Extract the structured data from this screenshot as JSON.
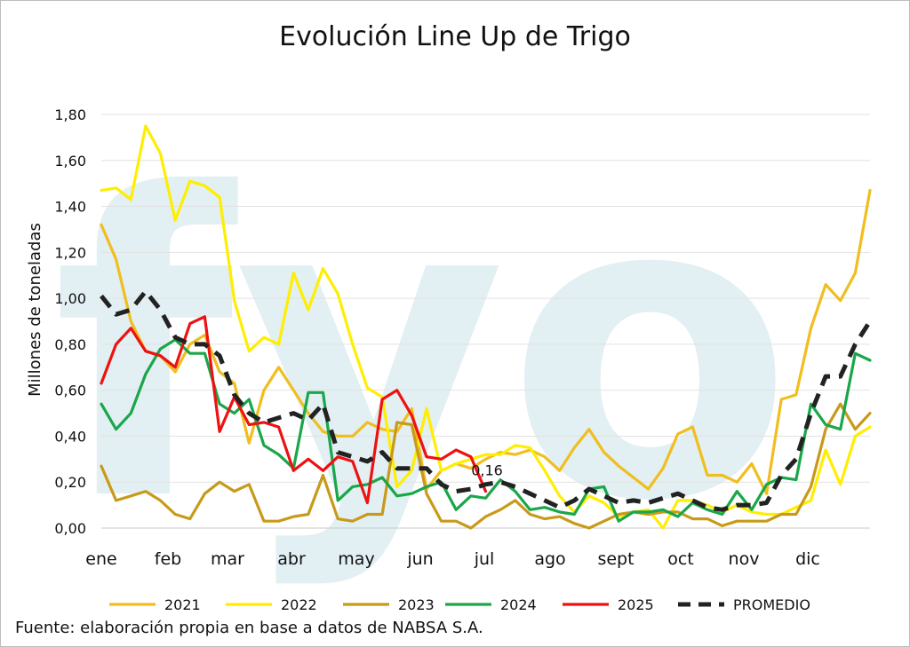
{
  "chart_data": {
    "type": "line",
    "title": "Evolución Line Up de Trigo",
    "xlabel": "",
    "ylabel": "Millones de toneladas",
    "ylim": [
      0,
      1.8
    ],
    "yticks": [
      "0,00",
      "0,20",
      "0,40",
      "0,60",
      "0,80",
      "1,00",
      "1,20",
      "1,40",
      "1,60",
      "1,80"
    ],
    "x_tick_labels": [
      "ene",
      "feb",
      "mar",
      "abr",
      "may",
      "jun",
      "jul",
      "ago",
      "sept",
      "oct",
      "nov",
      "dic"
    ],
    "x_range": [
      1,
      52
    ],
    "grid": "horizontal",
    "legend_position": "bottom",
    "annotation": {
      "text": "0,16",
      "series": "2025",
      "week": 25
    },
    "source": "Fuente: elaboración propia en base a datos de NABSA S.A.",
    "watermark": "fyo",
    "series": [
      {
        "name": "2021",
        "color": "#f0be1e",
        "dash": false,
        "values": [
          1.32,
          1.17,
          0.9,
          0.77,
          0.75,
          0.68,
          0.8,
          0.84,
          0.68,
          0.63,
          0.37,
          0.6,
          0.7,
          0.6,
          0.5,
          0.42,
          0.4,
          0.4,
          0.46,
          0.43,
          0.42,
          0.52,
          0.17,
          0.25,
          0.28,
          0.26,
          0.3,
          0.33,
          0.32,
          0.34,
          0.31,
          0.25,
          0.35,
          0.43,
          0.33,
          0.27,
          0.22,
          0.17,
          0.26,
          0.41,
          0.44,
          0.23,
          0.23,
          0.2,
          0.28,
          0.15,
          0.56,
          0.58,
          0.87,
          1.06,
          0.99,
          1.11,
          1.47
        ]
      },
      {
        "name": "2022",
        "color": "#ffee00",
        "dash": false,
        "values": [
          1.47,
          1.48,
          1.43,
          1.75,
          1.63,
          1.34,
          1.51,
          1.49,
          1.44,
          0.99,
          0.77,
          0.83,
          0.8,
          1.11,
          0.95,
          1.13,
          1.02,
          0.8,
          0.61,
          0.57,
          0.18,
          0.25,
          0.52,
          0.25,
          0.28,
          0.3,
          0.32,
          0.32,
          0.36,
          0.35,
          0.25,
          0.14,
          0.07,
          0.14,
          0.11,
          0.05,
          0.07,
          0.08,
          0.0,
          0.12,
          0.12,
          0.1,
          0.07,
          0.1,
          0.07,
          0.06,
          0.06,
          0.09,
          0.12,
          0.34,
          0.19,
          0.4,
          0.44
        ]
      },
      {
        "name": "2023",
        "color": "#c89a1a",
        "dash": false,
        "values": [
          0.27,
          0.12,
          0.14,
          0.16,
          0.12,
          0.06,
          0.04,
          0.15,
          0.2,
          0.16,
          0.19,
          0.03,
          0.03,
          0.05,
          0.06,
          0.23,
          0.04,
          0.03,
          0.06,
          0.06,
          0.46,
          0.45,
          0.15,
          0.03,
          0.03,
          0.0,
          0.05,
          0.08,
          0.12,
          0.06,
          0.04,
          0.05,
          0.02,
          0.0,
          0.03,
          0.06,
          0.07,
          0.06,
          0.07,
          0.07,
          0.04,
          0.04,
          0.01,
          0.03,
          0.03,
          0.03,
          0.06,
          0.06,
          0.18,
          0.43,
          0.54,
          0.43,
          0.5
        ]
      },
      {
        "name": "2024",
        "color": "#1aa64a",
        "dash": false,
        "values": [
          0.54,
          0.43,
          0.5,
          0.67,
          0.78,
          0.82,
          0.76,
          0.76,
          0.54,
          0.5,
          0.56,
          0.36,
          0.32,
          0.26,
          0.59,
          0.59,
          0.12,
          0.18,
          0.19,
          0.22,
          0.14,
          0.15,
          0.18,
          0.2,
          0.08,
          0.14,
          0.13,
          0.21,
          0.16,
          0.08,
          0.09,
          0.07,
          0.06,
          0.17,
          0.18,
          0.03,
          0.07,
          0.07,
          0.08,
          0.05,
          0.11,
          0.08,
          0.06,
          0.16,
          0.08,
          0.19,
          0.22,
          0.21,
          0.54,
          0.45,
          0.43,
          0.76,
          0.73
        ]
      },
      {
        "name": "2025",
        "color": "#ee1111",
        "dash": false,
        "values": [
          0.63,
          0.8,
          0.87,
          0.77,
          0.75,
          0.7,
          0.89,
          0.92,
          0.42,
          0.57,
          0.45,
          0.46,
          0.44,
          0.25,
          0.3,
          0.25,
          0.31,
          0.29,
          0.11,
          0.56,
          0.6,
          0.49,
          0.31,
          0.3,
          0.34,
          0.31,
          0.16
        ]
      },
      {
        "name": "PROMEDIO",
        "color": "#222222",
        "dash": true,
        "values": [
          1.01,
          0.93,
          0.95,
          1.03,
          0.95,
          0.83,
          0.8,
          0.8,
          0.75,
          0.58,
          0.5,
          0.46,
          0.48,
          0.5,
          0.47,
          0.54,
          0.33,
          0.31,
          0.29,
          0.33,
          0.26,
          0.26,
          0.26,
          0.19,
          0.16,
          0.17,
          0.19,
          0.2,
          0.18,
          0.15,
          0.12,
          0.09,
          0.12,
          0.17,
          0.14,
          0.11,
          0.12,
          0.11,
          0.13,
          0.15,
          0.12,
          0.09,
          0.08,
          0.1,
          0.1,
          0.11,
          0.23,
          0.3,
          0.5,
          0.66,
          0.66,
          0.8,
          0.9
        ]
      }
    ]
  }
}
